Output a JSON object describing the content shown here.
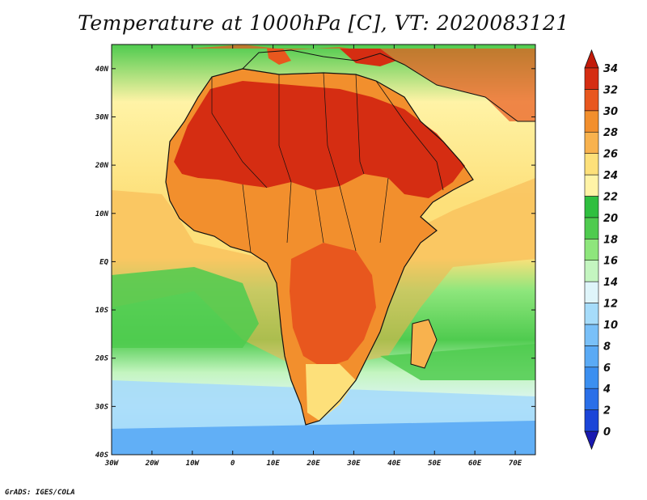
{
  "title": "Temperature at 1000hPa [C], VT: 2020083121",
  "credit": "GrADS: IGES/COLA",
  "map": {
    "type": "filled-contour",
    "variable": "Temperature at 1000hPa",
    "units": "C",
    "lon_range": [
      -30,
      75
    ],
    "lat_range": [
      -40,
      45
    ],
    "x_ticks": [
      "30W",
      "20W",
      "10W",
      "0",
      "10E",
      "20E",
      "30E",
      "40E",
      "50E",
      "60E",
      "70E"
    ],
    "y_ticks": [
      "40N",
      "30N",
      "20N",
      "10N",
      "EQ",
      "10S",
      "20S",
      "30S",
      "40S"
    ]
  },
  "colorbar": {
    "levels": [
      "0",
      "2",
      "4",
      "6",
      "8",
      "10",
      "12",
      "14",
      "16",
      "18",
      "20",
      "22",
      "24",
      "26",
      "28",
      "30",
      "32",
      "34"
    ],
    "colors": [
      "#1a1ab0",
      "#1b45d8",
      "#2a6fe8",
      "#3b8ff0",
      "#5aaaf5",
      "#79c0f8",
      "#a6dcfa",
      "#dff5fa",
      "#c4f5c0",
      "#8ee67c",
      "#4fcb4f",
      "#2fbf3f",
      "#fff3a6",
      "#fde07a",
      "#f8b24e",
      "#f28f2d",
      "#e8571e",
      "#d52d12",
      "#c21a0a"
    ]
  },
  "colors": {
    "ocean_warm": "#fde07a",
    "ocean_cool": "#4fcb4f",
    "sahara": "#d52d12",
    "coast_line": "#111111"
  }
}
